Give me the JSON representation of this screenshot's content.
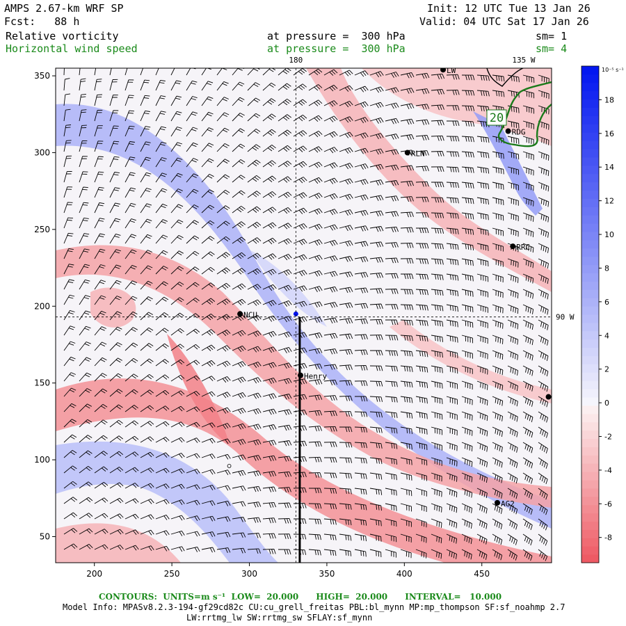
{
  "header": {
    "model": "AMPS 2.67-km WRF SP",
    "forecast": "Fcst:   88 h",
    "init": "Init: 12 UTC Tue 13 Jan 26",
    "valid": "Valid: 04 UTC Sat 17 Jan 26",
    "field1": "Relative vorticity",
    "field1_level": "at pressure =  300 hPa",
    "field1_sm": "sm= 1",
    "field2": "Horizontal wind speed",
    "field2_level": "at pressure =  300 hPa",
    "field2_sm": "sm= 4"
  },
  "chart_data": {
    "type": "heatmap",
    "title": "Relative vorticity and horizontal wind speed at 300 hPa",
    "x_ticks": [
      200,
      250,
      300,
      350,
      400,
      450
    ],
    "y_ticks": [
      50,
      100,
      150,
      200,
      250,
      300,
      350
    ],
    "xlim": [
      175,
      495
    ],
    "ylim": [
      33,
      355
    ],
    "meridian_labels": [
      "180",
      "135 W",
      "90 W"
    ],
    "colorbar": {
      "units": "10⁻⁵ s⁻¹",
      "ticks": [
        18,
        16,
        14,
        12,
        10,
        8,
        6,
        4,
        2,
        0,
        -2,
        -4,
        -6,
        -8
      ],
      "range": [
        -9.5,
        20
      ]
    },
    "stations": [
      {
        "name": "LW",
        "x": 425,
        "y": 354
      },
      {
        "name": "RDG",
        "x": 467,
        "y": 314
      },
      {
        "name": "RLN",
        "x": 402,
        "y": 300
      },
      {
        "name": "RRC",
        "x": 470,
        "y": 239
      },
      {
        "name": "NCU",
        "x": 294,
        "y": 195
      },
      {
        "name": "Henry",
        "x": 333,
        "y": 155
      },
      {
        "name": "AG2",
        "x": 460,
        "y": 72
      },
      {
        "name": "",
        "x": 493,
        "y": 141
      }
    ],
    "contour_label": "20"
  },
  "footer": {
    "contours": "CONTOURS:  UNITS=m s⁻¹  LOW=  20.000      HIGH=  20.000      INTERVAL=   10.000",
    "model_info": "Model Info: MPASv8.2.3-194-gf29cd82c CU:cu_grell_freitas PBL:bl_mynn MP:mp_thompson SF:sf_noahmp 2.7",
    "model_info2": "LW:rrtmg_lw SW:rrtmg_sw SFLAY:sf_mynn"
  }
}
